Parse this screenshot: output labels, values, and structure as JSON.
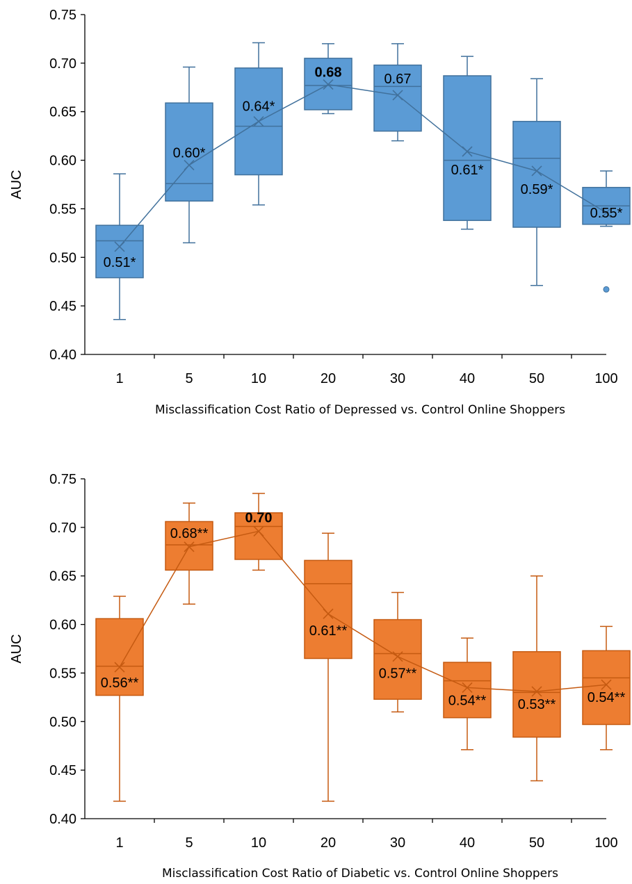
{
  "chart_data": [
    {
      "type": "box",
      "xlabel": "Misclassification Cost Ratio of Depressed vs. Control Online Shoppers",
      "ylabel": "AUC",
      "ylim": [
        0.4,
        0.75
      ],
      "yticks": [
        "0.40",
        "0.45",
        "0.50",
        "0.55",
        "0.60",
        "0.65",
        "0.70",
        "0.75"
      ],
      "categories": [
        "1",
        "5",
        "10",
        "20",
        "30",
        "40",
        "50",
        "100"
      ],
      "color": "#5B9BD5",
      "edge_color": "#41719C",
      "boxes": [
        {
          "whisker_low": 0.436,
          "q1": 0.479,
          "median": 0.517,
          "q3": 0.533,
          "whisker_high": 0.586,
          "mean": 0.511,
          "outliers": []
        },
        {
          "whisker_low": 0.515,
          "q1": 0.558,
          "median": 0.576,
          "q3": 0.659,
          "whisker_high": 0.696,
          "mean": 0.595,
          "outliers": []
        },
        {
          "whisker_low": 0.554,
          "q1": 0.585,
          "median": 0.635,
          "q3": 0.695,
          "whisker_high": 0.721,
          "mean": 0.64,
          "outliers": []
        },
        {
          "whisker_low": 0.648,
          "q1": 0.652,
          "median": 0.677,
          "q3": 0.705,
          "whisker_high": 0.72,
          "mean": 0.678,
          "outliers": []
        },
        {
          "whisker_low": 0.62,
          "q1": 0.63,
          "median": 0.676,
          "q3": 0.698,
          "whisker_high": 0.72,
          "mean": 0.667,
          "outliers": []
        },
        {
          "whisker_low": 0.529,
          "q1": 0.538,
          "median": 0.6,
          "q3": 0.687,
          "whisker_high": 0.707,
          "mean": 0.609,
          "outliers": []
        },
        {
          "whisker_low": 0.471,
          "q1": 0.531,
          "median": 0.602,
          "q3": 0.64,
          "whisker_high": 0.684,
          "mean": 0.589,
          "outliers": []
        },
        {
          "whisker_low": 0.532,
          "q1": 0.534,
          "median": 0.553,
          "q3": 0.572,
          "whisker_high": 0.589,
          "mean": 0.546,
          "outliers": [
            0.467
          ]
        }
      ],
      "data_labels": [
        "0.51*",
        "0.60*",
        "0.64*",
        "0.68",
        "0.67",
        "0.61*",
        "0.59*",
        "0.55*"
      ],
      "best_label": "0.68"
    },
    {
      "type": "box",
      "xlabel": "Misclassification Cost Ratio of Diabetic vs. Control Online Shoppers",
      "ylabel": "AUC",
      "ylim": [
        0.4,
        0.75
      ],
      "yticks": [
        "0.40",
        "0.45",
        "0.50",
        "0.55",
        "0.60",
        "0.65",
        "0.70",
        "0.75"
      ],
      "categories": [
        "1",
        "5",
        "10",
        "20",
        "30",
        "40",
        "50",
        "100"
      ],
      "color": "#ED7D31",
      "edge_color": "#C55A11",
      "boxes": [
        {
          "whisker_low": 0.418,
          "q1": 0.527,
          "median": 0.557,
          "q3": 0.606,
          "whisker_high": 0.629,
          "mean": 0.556,
          "outliers": []
        },
        {
          "whisker_low": 0.621,
          "q1": 0.656,
          "median": 0.682,
          "q3": 0.706,
          "whisker_high": 0.725,
          "mean": 0.68,
          "outliers": []
        },
        {
          "whisker_low": 0.656,
          "q1": 0.667,
          "median": 0.701,
          "q3": 0.715,
          "whisker_high": 0.735,
          "mean": 0.696,
          "outliers": []
        },
        {
          "whisker_low": 0.418,
          "q1": 0.565,
          "median": 0.642,
          "q3": 0.666,
          "whisker_high": 0.694,
          "mean": 0.611,
          "outliers": []
        },
        {
          "whisker_low": 0.51,
          "q1": 0.523,
          "median": 0.57,
          "q3": 0.605,
          "whisker_high": 0.633,
          "mean": 0.567,
          "outliers": []
        },
        {
          "whisker_low": 0.471,
          "q1": 0.504,
          "median": 0.542,
          "q3": 0.561,
          "whisker_high": 0.586,
          "mean": 0.535,
          "outliers": []
        },
        {
          "whisker_low": 0.439,
          "q1": 0.484,
          "median": 0.53,
          "q3": 0.572,
          "whisker_high": 0.65,
          "mean": 0.531,
          "outliers": []
        },
        {
          "whisker_low": 0.471,
          "q1": 0.497,
          "median": 0.545,
          "q3": 0.573,
          "whisker_high": 0.598,
          "mean": 0.538,
          "outliers": []
        }
      ],
      "data_labels": [
        "0.56**",
        "0.68**",
        "0.70",
        "0.61**",
        "0.57**",
        "0.54**",
        "0.53**",
        "0.54**"
      ],
      "best_label": "0.70"
    }
  ]
}
